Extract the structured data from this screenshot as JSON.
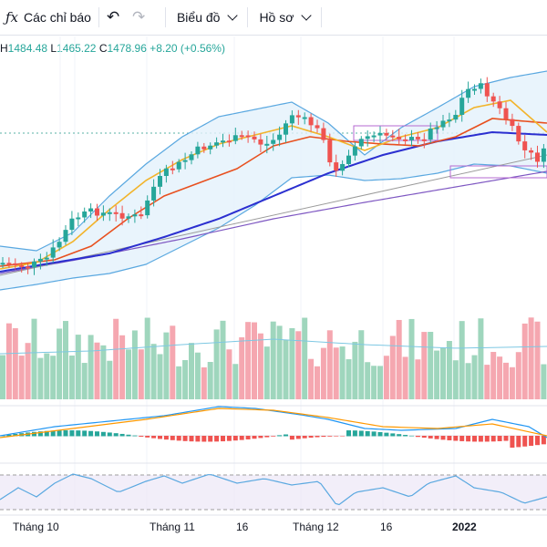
{
  "toolbar": {
    "indicators_label": "Các chỉ báo",
    "chart_menu_label": "Biểu đồ",
    "profile_menu_label": "Hồ sơ"
  },
  "legend": {
    "h_prefix": "H",
    "h": "1484.48",
    "l_prefix": "L",
    "l": "1465.22",
    "c_prefix": "C",
    "c": "1478.96",
    "change": "+8.20 (+0.56%)"
  },
  "x_axis": [
    "Tháng 10",
    "Tháng 11",
    "16",
    "Tháng 12",
    "16",
    "2022"
  ],
  "colors": {
    "up": "#26a69a",
    "down": "#ef5350",
    "vol_up": "#9fd6bd",
    "vol_down": "#f5a7b0",
    "bb": "#5aa8e0",
    "bb_fill": "#e3f1fb",
    "ma_fast": "#f2b42b",
    "ma_mid": "#e8501f",
    "ma_slow": "#2b2fd0",
    "ma_long": "#7e57c2"
  },
  "chart_data": {
    "type": "candlestick",
    "x_labels": [
      "Tháng 10",
      "Tháng 11",
      "16",
      "Tháng 12",
      "16",
      "2022"
    ],
    "last_candle": {
      "high": 1484.48,
      "low": 1465.22,
      "close": 1478.96,
      "change": 8.2,
      "change_pct": 0.56
    },
    "indicators": [
      "Bollinger Bands",
      "Moving averages",
      "Volume",
      "MACD",
      "RSI"
    ],
    "grid": true
  }
}
